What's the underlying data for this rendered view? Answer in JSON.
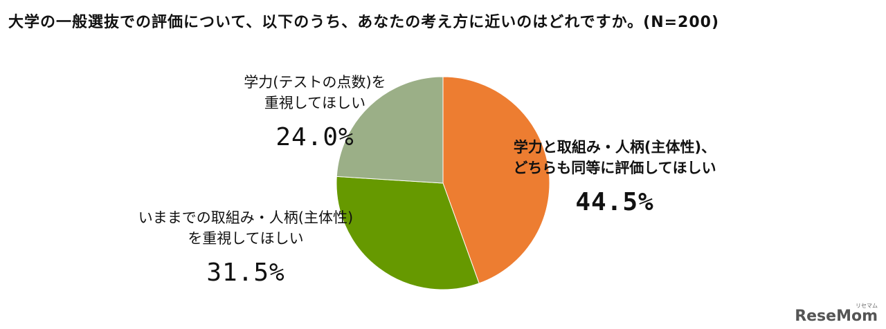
{
  "title": "大学の一般選抜での評価について、以下のうち、あなたの考え方に近いのはどれですか。(N=200)",
  "chart_data": {
    "type": "pie",
    "slices": [
      {
        "key": "both",
        "lines": [
          "学力と取組み・人柄(主体性)、",
          "どちらも同等に評価してほしい"
        ],
        "value": 44.5,
        "value_label": "44.5%",
        "color": "#ED7D31"
      },
      {
        "key": "past",
        "lines": [
          "いままでの取組み・人柄(主体性)",
          "を重視してほしい"
        ],
        "value": 31.5,
        "value_label": "31.5%",
        "color": "#669900"
      },
      {
        "key": "test",
        "lines": [
          "学力(テストの点数)を",
          "重視してほしい"
        ],
        "value": 24.0,
        "value_label": "24.0%",
        "color": "#9BAF87"
      }
    ]
  },
  "logo": {
    "text": "ReseMom",
    "small": "リセマム"
  }
}
